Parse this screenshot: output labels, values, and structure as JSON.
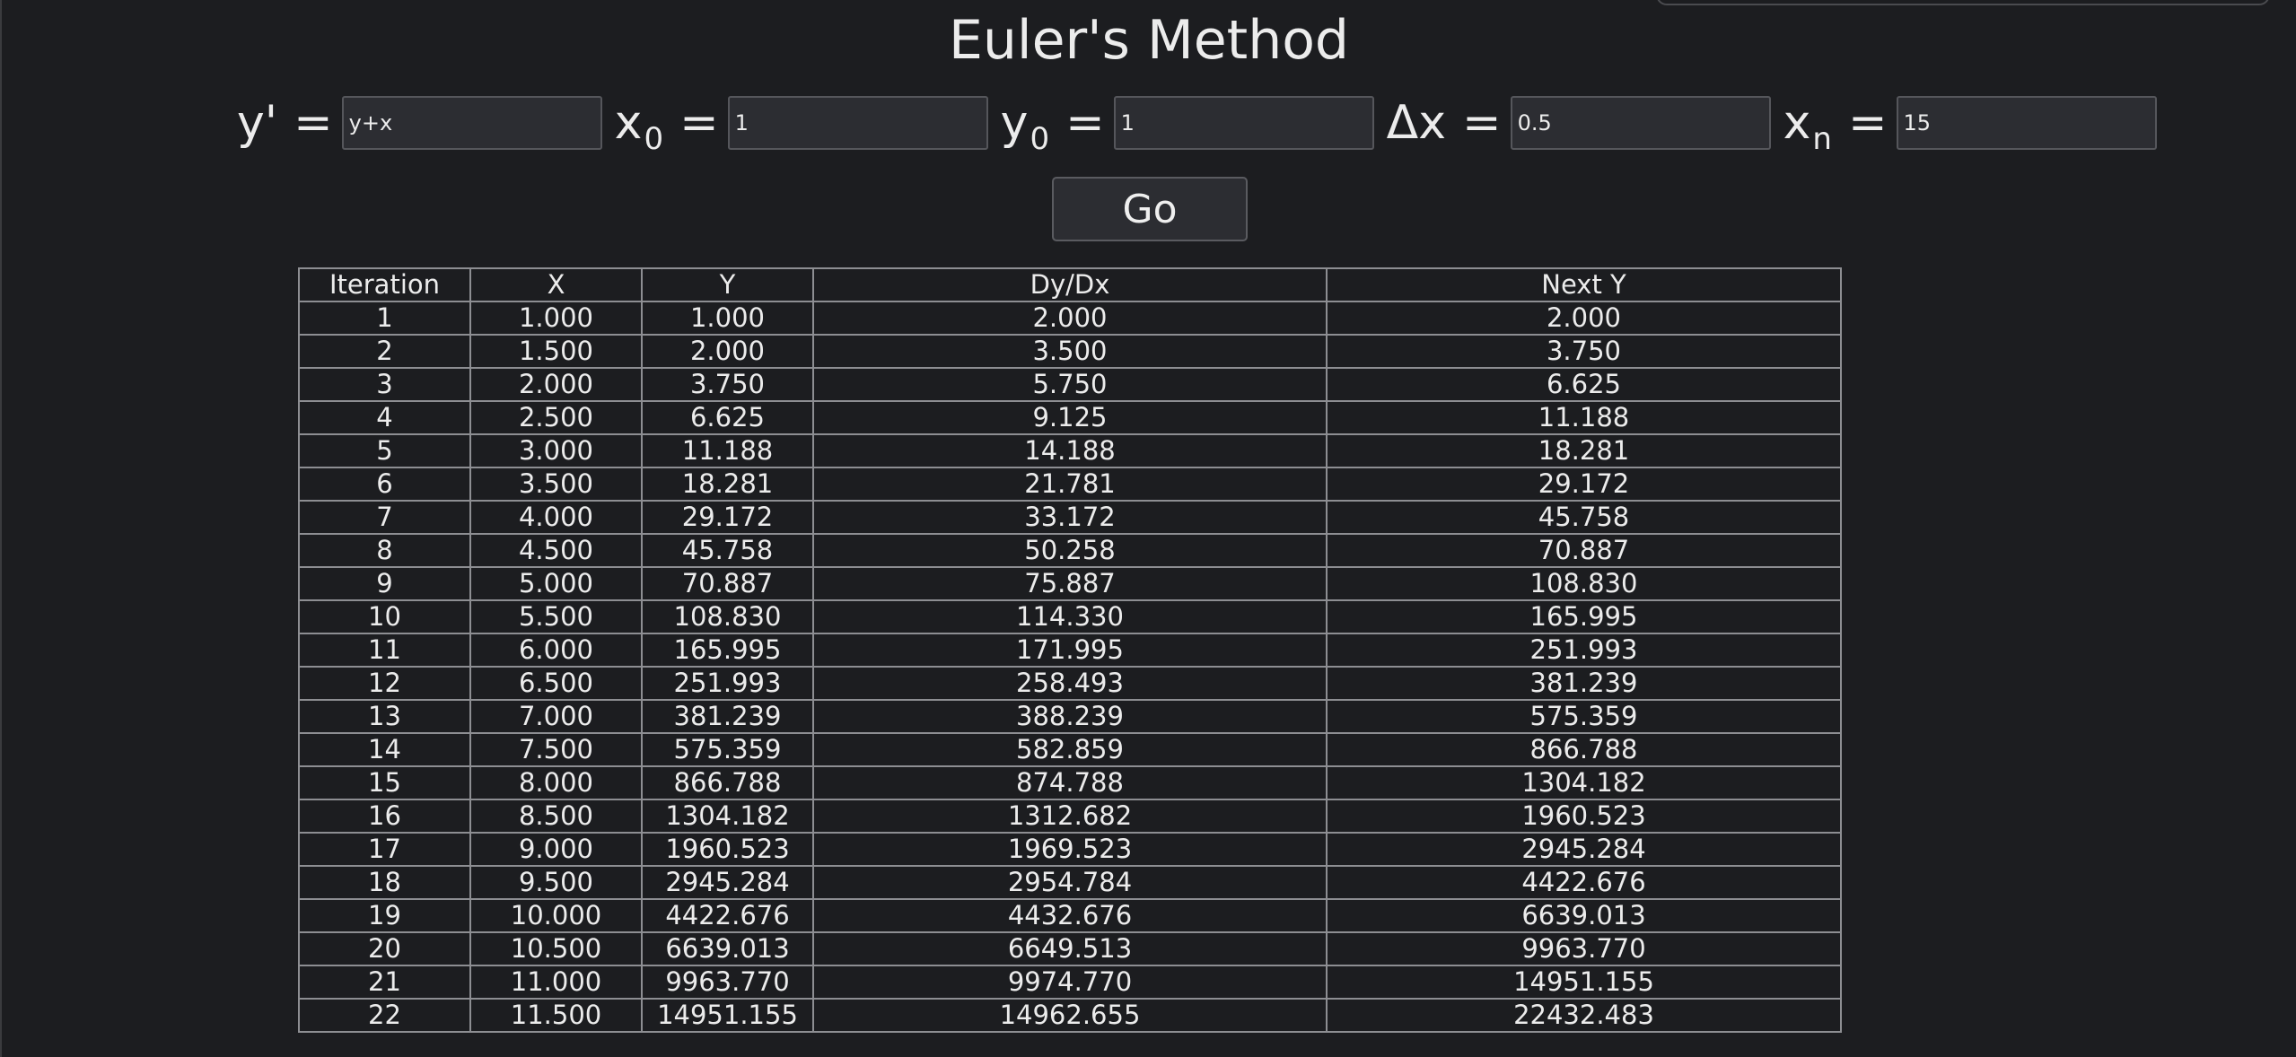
{
  "page": {
    "title": "Euler's Method",
    "colors": {
      "background": "#1c1d20",
      "input_background": "#2c2d32",
      "border": "#8d8e92",
      "text": "#ececec"
    }
  },
  "params": {
    "y_prime": {
      "label": "y'",
      "sub": "",
      "eq": "=",
      "value": "y+x"
    },
    "x0": {
      "label": "x",
      "sub": "0",
      "eq": "=",
      "value": "1"
    },
    "y0": {
      "label": "y",
      "sub": "0",
      "eq": "=",
      "value": "1"
    },
    "dx": {
      "label": "Δx",
      "sub": "",
      "eq": "=",
      "value": "0.5"
    },
    "xn": {
      "label": "x",
      "sub": "n",
      "eq": "=",
      "value": "15"
    }
  },
  "go_button": {
    "label": "Go"
  },
  "table": {
    "headers": [
      "Iteration",
      "X",
      "Y",
      "Dy/Dx",
      "Next Y"
    ],
    "rows": [
      [
        "1",
        "1.000",
        "1.000",
        "2.000",
        "2.000"
      ],
      [
        "2",
        "1.500",
        "2.000",
        "3.500",
        "3.750"
      ],
      [
        "3",
        "2.000",
        "3.750",
        "5.750",
        "6.625"
      ],
      [
        "4",
        "2.500",
        "6.625",
        "9.125",
        "11.188"
      ],
      [
        "5",
        "3.000",
        "11.188",
        "14.188",
        "18.281"
      ],
      [
        "6",
        "3.500",
        "18.281",
        "21.781",
        "29.172"
      ],
      [
        "7",
        "4.000",
        "29.172",
        "33.172",
        "45.758"
      ],
      [
        "8",
        "4.500",
        "45.758",
        "50.258",
        "70.887"
      ],
      [
        "9",
        "5.000",
        "70.887",
        "75.887",
        "108.830"
      ],
      [
        "10",
        "5.500",
        "108.830",
        "114.330",
        "165.995"
      ],
      [
        "11",
        "6.000",
        "165.995",
        "171.995",
        "251.993"
      ],
      [
        "12",
        "6.500",
        "251.993",
        "258.493",
        "381.239"
      ],
      [
        "13",
        "7.000",
        "381.239",
        "388.239",
        "575.359"
      ],
      [
        "14",
        "7.500",
        "575.359",
        "582.859",
        "866.788"
      ],
      [
        "15",
        "8.000",
        "866.788",
        "874.788",
        "1304.182"
      ],
      [
        "16",
        "8.500",
        "1304.182",
        "1312.682",
        "1960.523"
      ],
      [
        "17",
        "9.000",
        "1960.523",
        "1969.523",
        "2945.284"
      ],
      [
        "18",
        "9.500",
        "2945.284",
        "2954.784",
        "4422.676"
      ],
      [
        "19",
        "10.000",
        "4422.676",
        "4432.676",
        "6639.013"
      ],
      [
        "20",
        "10.500",
        "6639.013",
        "6649.513",
        "9963.770"
      ],
      [
        "21",
        "11.000",
        "9963.770",
        "9974.770",
        "14951.155"
      ],
      [
        "22",
        "11.500",
        "14951.155",
        "14962.655",
        "22432.483"
      ]
    ]
  }
}
